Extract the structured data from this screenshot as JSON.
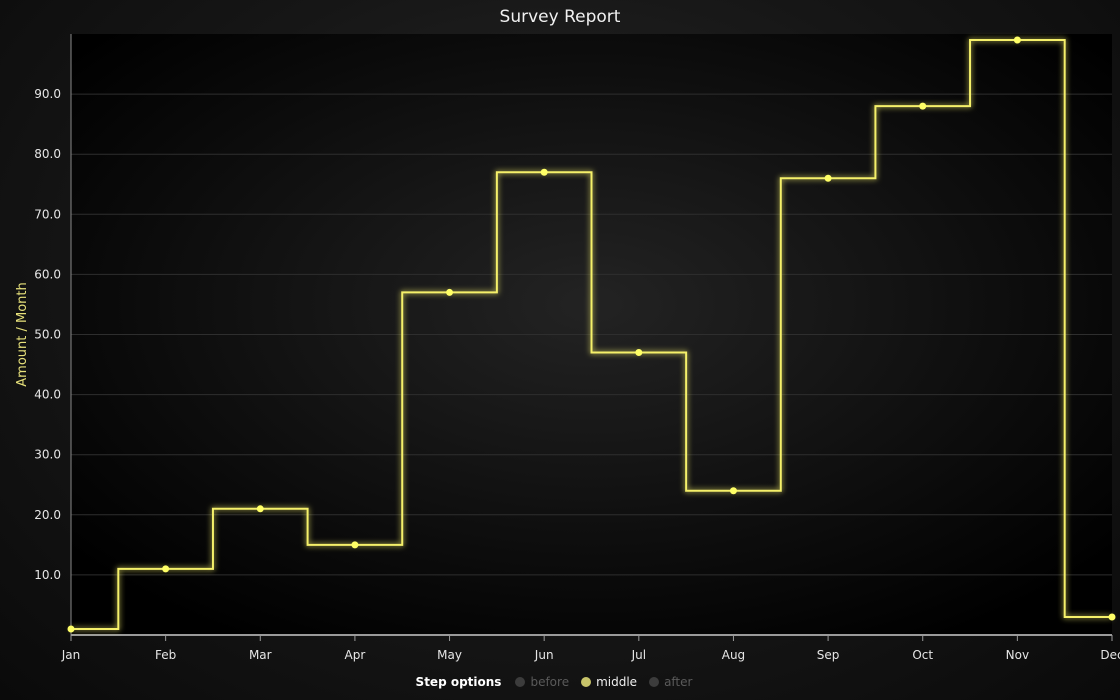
{
  "chart_data": {
    "type": "line",
    "step": "middle",
    "title": "Survey Report",
    "xlabel": "",
    "ylabel": "Amount / Month",
    "categories": [
      "Jan",
      "Feb",
      "Mar",
      "Apr",
      "May",
      "Jun",
      "Jul",
      "Aug",
      "Sep",
      "Oct",
      "Nov",
      "Dec"
    ],
    "series": [
      {
        "values": [
          1,
          11,
          21,
          15,
          57,
          77,
          47,
          24,
          76,
          88,
          99,
          3
        ]
      }
    ],
    "ylim": [
      0,
      100
    ],
    "yticks": [
      "10.0",
      "20.0",
      "30.0",
      "40.0",
      "50.0",
      "60.0",
      "70.0",
      "80.0",
      "90.0"
    ],
    "grid": true,
    "line_color": "#f5f06a",
    "background_color": "#000000"
  },
  "legend": {
    "title": "Step options",
    "items": [
      {
        "label": "before",
        "active": false
      },
      {
        "label": "middle",
        "active": true
      },
      {
        "label": "after",
        "active": false
      }
    ]
  }
}
